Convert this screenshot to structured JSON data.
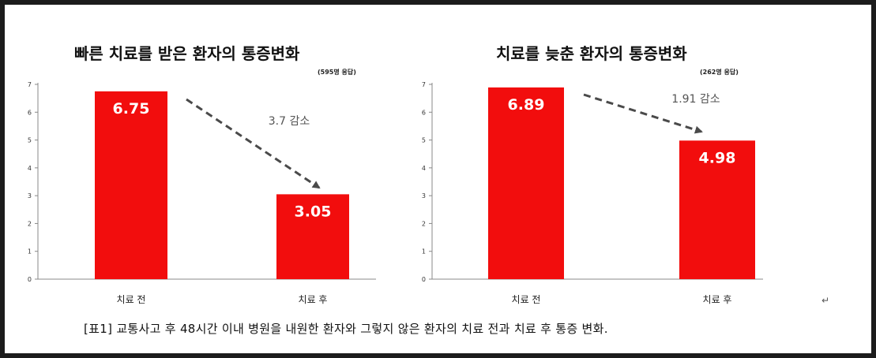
{
  "caption": "[표1] 교통사고 후 48시간 이내 병원을 내원한 환자와 그렇지 않은 환자의 치료 전과 치료 후 통증 변화.",
  "return_mark": "↵",
  "colors": {
    "bar": "#f20d0d",
    "bar_label": "#ffffff",
    "arrow": "#4a4a4a",
    "axis": "#888888"
  },
  "chart_data": [
    {
      "type": "bar",
      "title": "빠른 치료를 받은 환자의 통증변화",
      "subtitle": "(595명 응답)",
      "categories": [
        "치료 전",
        "치료 후"
      ],
      "values": [
        6.75,
        3.05
      ],
      "value_labels": [
        "6.75",
        "3.05"
      ],
      "annotation": "3.7 감소",
      "ylim": [
        0,
        7
      ],
      "yticks": [
        0,
        1,
        2,
        3,
        4,
        5,
        6,
        7
      ],
      "xlabel": "",
      "ylabel": "",
      "grid": false
    },
    {
      "type": "bar",
      "title": "치료를 늦춘 환자의 통증변화",
      "subtitle": "(262명 응답)",
      "categories": [
        "치료 전",
        "치료 후"
      ],
      "values": [
        6.89,
        4.98
      ],
      "value_labels": [
        "6.89",
        "4.98"
      ],
      "annotation": "1.91 감소",
      "ylim": [
        0,
        7
      ],
      "yticks": [
        0,
        1,
        2,
        3,
        4,
        5,
        6,
        7
      ],
      "xlabel": "",
      "ylabel": "",
      "grid": false
    }
  ]
}
